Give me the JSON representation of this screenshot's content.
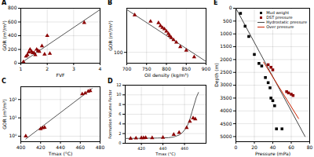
{
  "chart_data": [
    {
      "type": "scatter",
      "title": "A",
      "xlabel": "FVF",
      "ylabel": "GOR (m³/m³)",
      "xlim": [
        1,
        4
      ],
      "ylim": [
        0,
        800
      ],
      "xticks": [
        1,
        2,
        3,
        4
      ],
      "yticks": [
        0,
        200,
        400,
        600,
        800
      ],
      "grid": true,
      "series": [
        {
          "type": "scatter",
          "marker": "triangle",
          "color": "#8B0000",
          "x": [
            1.1,
            1.2,
            1.25,
            1.3,
            1.35,
            1.4,
            1.45,
            1.5,
            1.55,
            1.6,
            1.65,
            1.7,
            1.8,
            1.9,
            2.0,
            2.1,
            3.4
          ],
          "values": [
            20,
            100,
            120,
            160,
            200,
            170,
            150,
            150,
            120,
            200,
            180,
            170,
            250,
            130,
            400,
            140,
            590
          ]
        },
        {
          "type": "line",
          "color": "#555555",
          "x": [
            1,
            4
          ],
          "values": [
            0,
            780
          ]
        }
      ]
    },
    {
      "type": "scatter",
      "title": "B",
      "xlabel": "Oil density (kg/m³)",
      "ylabel": "GOR (m³/m³)",
      "log": "y",
      "xlim": [
        700,
        900
      ],
      "ylim": [
        60,
        800
      ],
      "xticks": [
        700,
        750,
        800,
        850,
        900
      ],
      "yticks": [
        100
      ],
      "grid": true,
      "series": [
        {
          "type": "scatter",
          "marker": "triangle",
          "color": "#8B0000",
          "x": [
            720,
            760,
            780,
            785,
            790,
            795,
            800,
            805,
            808,
            812,
            818,
            825,
            835,
            850,
            870
          ],
          "values": [
            580,
            430,
            400,
            350,
            320,
            300,
            270,
            240,
            220,
            200,
            180,
            160,
            130,
            110,
            80
          ]
        },
        {
          "type": "line",
          "color": "#555555",
          "x": [
            700,
            900
          ],
          "values": [
            750,
            65
          ]
        }
      ]
    },
    {
      "type": "scatter",
      "title": "C",
      "xlabel": "Tmax (°C)",
      "ylabel": "GOR (m³/m³)",
      "log": "y",
      "xlim": [
        400,
        480
      ],
      "ylim": [
        0.5,
        500
      ],
      "xticks": [
        400,
        420,
        440,
        460,
        480
      ],
      "yticks": [
        {
          "value": 1,
          "label": "10⁰"
        },
        {
          "value": 10,
          "label": "10¹"
        },
        {
          "value": 100,
          "label": "10²"
        }
      ],
      "grid": true,
      "series": [
        {
          "type": "scatter",
          "marker": "triangle",
          "color": "#8B0000",
          "x": [
            405,
            420,
            422,
            424,
            462,
            465,
            468,
            470
          ],
          "values": [
            1.0,
            2.5,
            2.8,
            3.0,
            200,
            220,
            280,
            300
          ]
        },
        {
          "type": "line",
          "color": "#555555",
          "x": [
            405,
            472
          ],
          "values": [
            0.7,
            400
          ]
        }
      ]
    },
    {
      "type": "scatter",
      "title": "D",
      "xlabel": "Tmax (°C)",
      "ylabel": "Formation Volume Factor",
      "xlim": [
        405,
        480
      ],
      "ylim": [
        0,
        12
      ],
      "xticks": [
        420,
        440,
        460
      ],
      "yticks": [
        0,
        2,
        4,
        6,
        8,
        10,
        12
      ],
      "grid": true,
      "series": [
        {
          "type": "scatter",
          "marker": "triangle",
          "color": "#8B0000",
          "x": [
            410,
            415,
            420,
            422,
            424,
            430,
            440,
            450,
            455,
            462,
            465,
            468,
            470
          ],
          "values": [
            1.0,
            1.05,
            1.1,
            1.1,
            1.15,
            1.1,
            1.2,
            1.8,
            2.2,
            3.2,
            4.5,
            5.2,
            5.0
          ]
        },
        {
          "type": "line",
          "color": "#555555",
          "x": [
            405,
            415,
            425,
            435,
            445,
            450,
            455,
            458,
            461,
            463,
            465,
            467,
            469,
            471,
            473
          ],
          "values": [
            1.0,
            1.02,
            1.05,
            1.08,
            1.15,
            1.3,
            1.7,
            2.2,
            3.0,
            3.8,
            5.0,
            6.5,
            8.0,
            9.5,
            10.5
          ]
        }
      ]
    },
    {
      "type": "scatter",
      "title": "E",
      "xlabel": "Pressure (mPa)",
      "ylabel": "Depth (m)",
      "xlim": [
        0,
        80
      ],
      "ylim": [
        5200,
        0
      ],
      "xticks": [
        0,
        20,
        40,
        60,
        80
      ],
      "yticks": [
        0,
        500,
        1000,
        1500,
        2000,
        2500,
        3000,
        3500,
        4000,
        4500,
        5000
      ],
      "grid": true,
      "legend": "upper right",
      "series": [
        {
          "name": "Mud weight",
          "type": "scatter",
          "marker": "square",
          "color": "black",
          "x": [
            5,
            10,
            14,
            20,
            25,
            28,
            32,
            35,
            37,
            38,
            40,
            42,
            44,
            50
          ],
          "values": [
            200,
            700,
            1100,
            1800,
            2150,
            2250,
            2700,
            2900,
            3100,
            3500,
            3600,
            3800,
            4700,
            4700
          ]
        },
        {
          "name": "DST pressure",
          "type": "scatter",
          "marker": "square",
          "color": "#8B0000",
          "x": [
            35,
            38,
            40,
            55,
            57,
            60,
            62
          ],
          "values": [
            2200,
            2300,
            2400,
            3250,
            3300,
            3350,
            3400
          ]
        },
        {
          "name": "Hydrostatic pressure",
          "type": "line",
          "color": "#444444",
          "x": [
            0,
            75
          ],
          "values": [
            0,
            5000
          ]
        },
        {
          "name": "Over pressure",
          "type": "line",
          "color": "#cc2200",
          "x": [
            30,
            68
          ],
          "values": [
            2100,
            4300
          ]
        }
      ]
    }
  ]
}
